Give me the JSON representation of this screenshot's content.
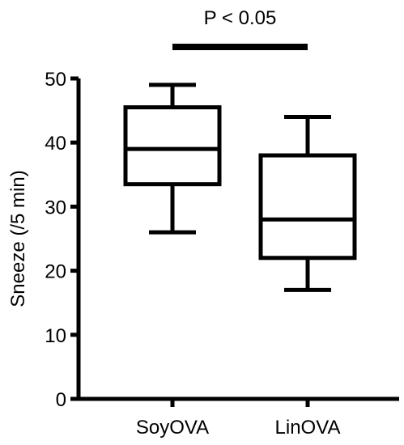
{
  "chart_data": {
    "type": "box",
    "title": "",
    "xlabel": "",
    "ylabel": "Sneeze (/5 min)",
    "ylim": [
      0,
      50
    ],
    "yticks": [
      "0",
      "10",
      "20",
      "30",
      "40",
      "50"
    ],
    "categories": [
      "SoyOVA",
      "LinOVA"
    ],
    "boxes": [
      {
        "category": "SoyOVA",
        "min": 26,
        "q1": 33.5,
        "median": 39,
        "q3": 45.5,
        "max": 49
      },
      {
        "category": "LinOVA",
        "min": 17,
        "q1": 22,
        "median": 28,
        "q3": 38,
        "max": 44
      }
    ],
    "annotation": {
      "text": "P < 0.05",
      "between": [
        "SoyOVA",
        "LinOVA"
      ]
    },
    "grid": false,
    "legend": "none",
    "color": "#000000"
  }
}
